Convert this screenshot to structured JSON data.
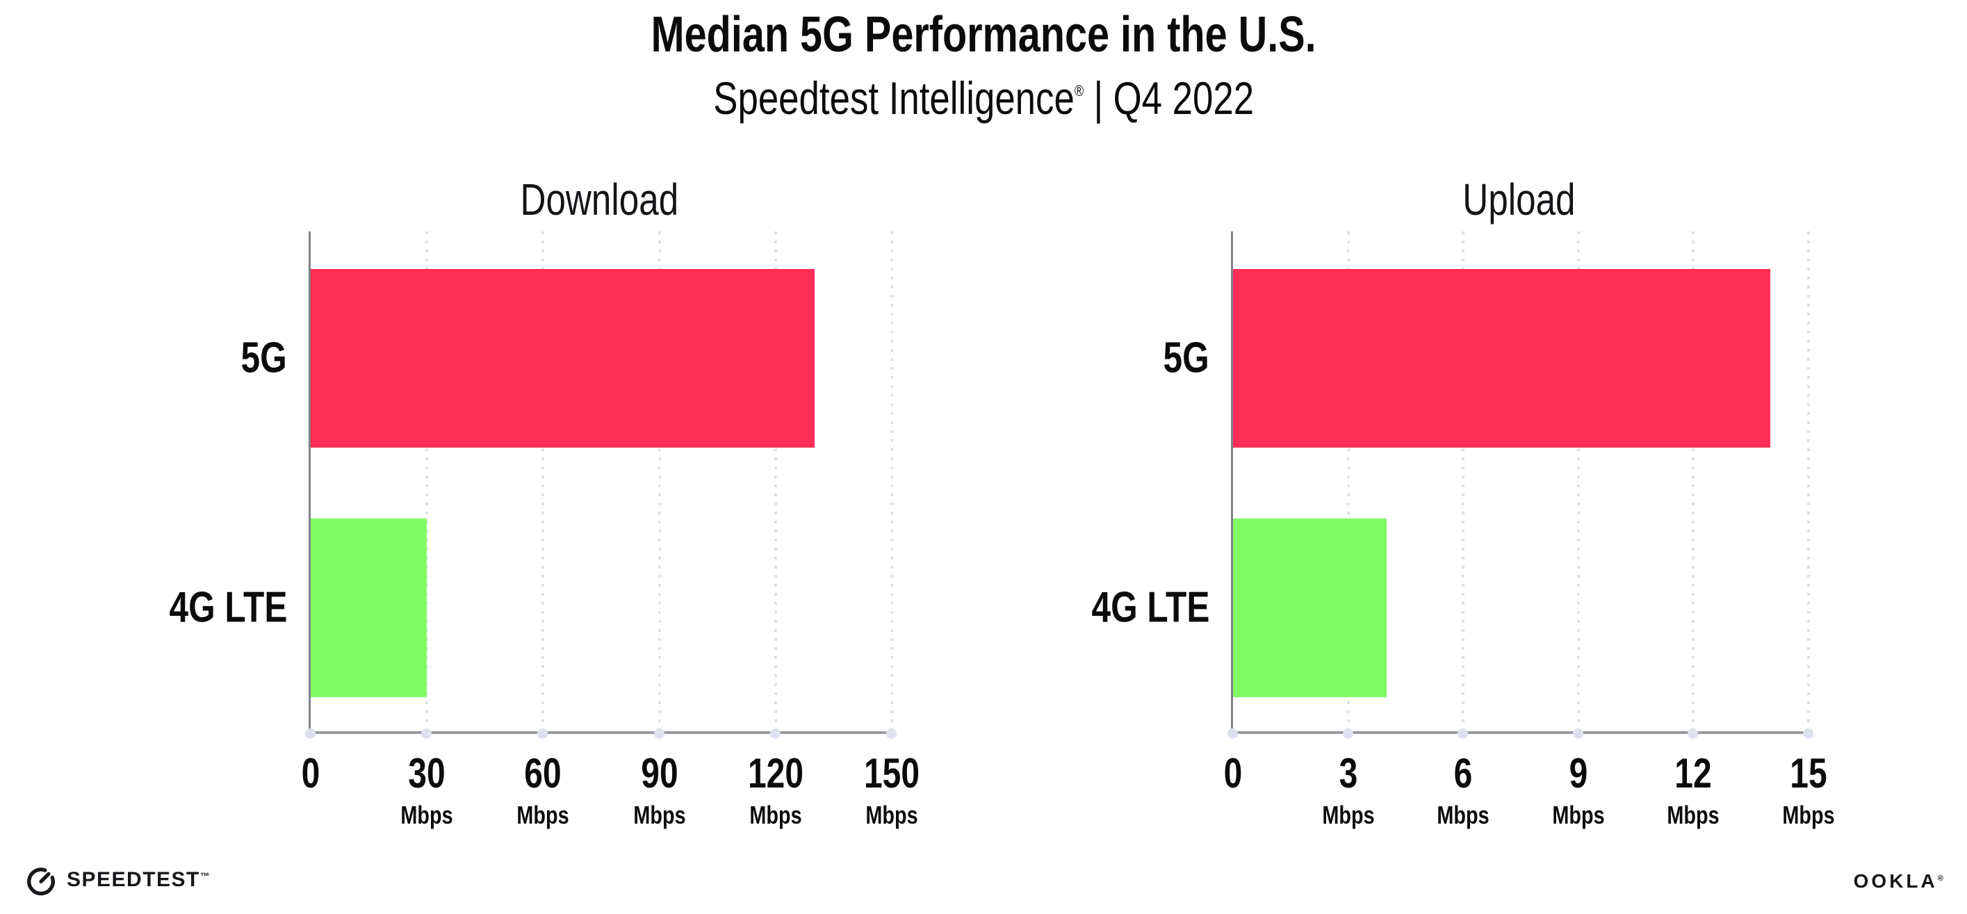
{
  "header": {
    "title": "Median 5G Performance in the U.S.",
    "subtitle_brand": "Speedtest Intelligence",
    "subtitle_reg_mark": "®",
    "subtitle_separator": "|",
    "subtitle_period": "Q4 2022"
  },
  "chart_data": [
    {
      "type": "bar",
      "orientation": "horizontal",
      "title": "Download",
      "categories": [
        "5G",
        "4G LTE"
      ],
      "values": [
        130,
        30
      ],
      "unit": "Mbps",
      "xlabel": "",
      "ylabel": "",
      "xlim": [
        0,
        150
      ],
      "xticks": [
        0,
        30,
        60,
        90,
        120,
        150
      ],
      "bar_colors": [
        "#FF2E56",
        "#81FB63"
      ],
      "grid": "vertical dotted",
      "legend": "none"
    },
    {
      "type": "bar",
      "orientation": "horizontal",
      "title": "Upload",
      "categories": [
        "5G",
        "4G LTE"
      ],
      "values": [
        14,
        4
      ],
      "unit": "Mbps",
      "xlabel": "",
      "ylabel": "",
      "xlim": [
        0,
        15
      ],
      "xticks": [
        0,
        3,
        6,
        9,
        12,
        15
      ],
      "bar_colors": [
        "#FF2E56",
        "#81FB63"
      ],
      "grid": "vertical dotted",
      "legend": "none"
    }
  ],
  "footer": {
    "speedtest_label": "SPEEDTEST",
    "speedtest_mark": "™",
    "ookla_label": "OOKLA",
    "ookla_mark": "®"
  },
  "colors": {
    "bar_5g": "#FF2E56",
    "bar_4g_lte": "#81FB63",
    "gridline": "#DFE0EB",
    "axis_line": "#9B9BA3",
    "text": "#0B0B0C",
    "background": "#FFFFFF"
  }
}
